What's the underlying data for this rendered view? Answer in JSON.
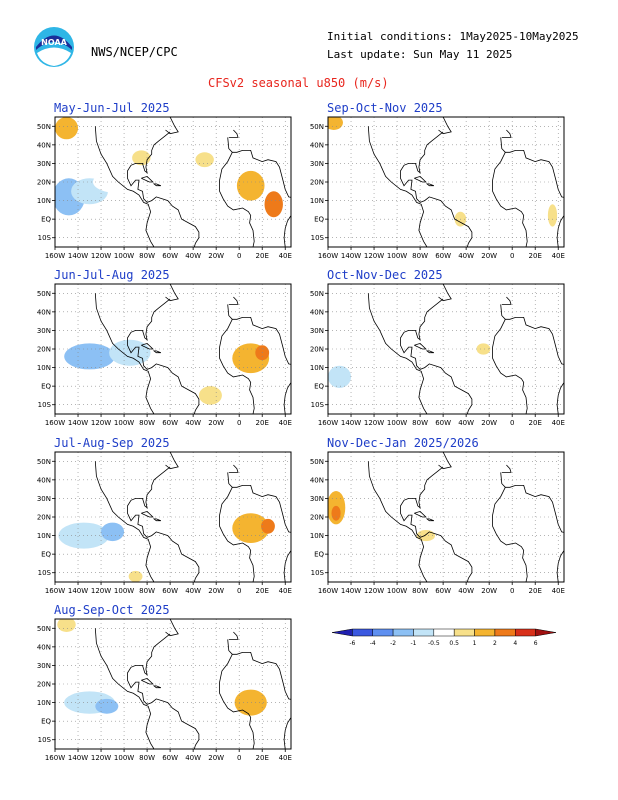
{
  "header": {
    "org": "NWS/NCEP/CPC",
    "logo_text": "NOAA",
    "initial_conditions": "Initial conditions: 1May2025-10May2025",
    "last_update": "Last update: Sun May 11 2025",
    "title": "CFSv2 seasonal u850 (m/s)"
  },
  "colors": {
    "title": "#e8261e",
    "panel_title": "#1f3ec8",
    "ocean": "#ffffff",
    "coast": "#000000"
  },
  "chart_data": {
    "type": "heatmap",
    "x_ticks": [
      "160W",
      "140W",
      "120W",
      "100W",
      "80W",
      "60W",
      "40W",
      "20W",
      "0",
      "20E",
      "40E"
    ],
    "y_ticks": [
      "50N",
      "40N",
      "30N",
      "20N",
      "10N",
      "EQ",
      "10S"
    ],
    "xlim": [
      -160,
      45
    ],
    "ylim": [
      -15,
      55
    ],
    "colorbar": {
      "levels": [
        "-6",
        "-4",
        "-2",
        "-1",
        "-0.5",
        "0.5",
        "1",
        "2",
        "4",
        "6"
      ],
      "colors": [
        "#2020b0",
        "#3a58e0",
        "#5e8ff0",
        "#8cc0f4",
        "#c2e4f7",
        "#ffffff",
        "#f7e08a",
        "#f4b430",
        "#ee7a1a",
        "#d8301a",
        "#a01010"
      ]
    },
    "panels": [
      {
        "title": "May-Jun-Jul 2025",
        "anomalies": [
          {
            "lon": -148,
            "lat": 12,
            "rlon": 14,
            "rlat": 10,
            "value": -2
          },
          {
            "lon": -130,
            "lat": 15,
            "rlon": 16,
            "rlat": 7,
            "value": -1
          },
          {
            "lon": -105,
            "lat": 20,
            "rlon": 22,
            "rlat": 6,
            "value": -0.5
          },
          {
            "lon": -150,
            "lat": 49,
            "rlon": 10,
            "rlat": 6,
            "value": 1
          },
          {
            "lon": -85,
            "lat": 33,
            "rlon": 8,
            "rlat": 4,
            "value": 0.5
          },
          {
            "lon": -30,
            "lat": 32,
            "rlon": 8,
            "rlat": 4,
            "value": 0.5
          },
          {
            "lon": 10,
            "lat": 18,
            "rlon": 12,
            "rlat": 8,
            "value": 1
          },
          {
            "lon": 30,
            "lat": 8,
            "rlon": 8,
            "rlat": 7,
            "value": 2
          },
          {
            "lon": -15,
            "lat": 52,
            "rlon": 18,
            "rlat": 4,
            "value": -0.5
          }
        ]
      },
      {
        "title": "Sep-Oct-Nov 2025",
        "anomalies": [
          {
            "lon": -140,
            "lat": 8,
            "rlon": 20,
            "rlat": 4,
            "value": -0.5
          },
          {
            "lon": -155,
            "lat": 52,
            "rlon": 8,
            "rlat": 4,
            "value": 1
          },
          {
            "lon": -45,
            "lat": 0,
            "rlon": 5,
            "rlat": 4,
            "value": 0.5
          },
          {
            "lon": 35,
            "lat": 2,
            "rlon": 4,
            "rlat": 6,
            "value": 0.5
          }
        ]
      },
      {
        "title": "Jun-Jul-Aug 2025",
        "anomalies": [
          {
            "lon": -130,
            "lat": 16,
            "rlon": 22,
            "rlat": 7,
            "value": -2
          },
          {
            "lon": -95,
            "lat": 18,
            "rlon": 18,
            "rlat": 7,
            "value": -1
          },
          {
            "lon": -70,
            "lat": 12,
            "rlon": 10,
            "rlat": 5,
            "value": -0.5
          },
          {
            "lon": 10,
            "lat": 15,
            "rlon": 16,
            "rlat": 8,
            "value": 1
          },
          {
            "lon": 20,
            "lat": 18,
            "rlon": 6,
            "rlat": 4,
            "value": 2
          },
          {
            "lon": -25,
            "lat": -5,
            "rlon": 10,
            "rlat": 5,
            "value": 0.5
          },
          {
            "lon": -10,
            "lat": 48,
            "rlon": 14,
            "rlat": 4,
            "value": -0.5
          }
        ]
      },
      {
        "title": "Oct-Nov-Dec 2025",
        "anomalies": [
          {
            "lon": -150,
            "lat": 5,
            "rlon": 10,
            "rlat": 6,
            "value": -1
          },
          {
            "lon": -25,
            "lat": 20,
            "rlon": 6,
            "rlat": 3,
            "value": 0.5
          },
          {
            "lon": -30,
            "lat": 5,
            "rlon": 5,
            "rlat": 4,
            "value": -0.5
          }
        ]
      },
      {
        "title": "Jul-Aug-Sep 2025",
        "anomalies": [
          {
            "lon": -135,
            "lat": 10,
            "rlon": 22,
            "rlat": 7,
            "value": -1
          },
          {
            "lon": -110,
            "lat": 12,
            "rlon": 10,
            "rlat": 5,
            "value": -2
          },
          {
            "lon": 10,
            "lat": 14,
            "rlon": 16,
            "rlat": 8,
            "value": 1
          },
          {
            "lon": 25,
            "lat": 15,
            "rlon": 6,
            "rlat": 4,
            "value": 2
          },
          {
            "lon": -90,
            "lat": -12,
            "rlon": 6,
            "rlat": 3,
            "value": 0.5
          }
        ]
      },
      {
        "title": "Nov-Dec-Jan 2025/2026",
        "anomalies": [
          {
            "lon": -153,
            "lat": 25,
            "rlon": 8,
            "rlat": 9,
            "value": 1
          },
          {
            "lon": -153,
            "lat": 22,
            "rlon": 4,
            "rlat": 4,
            "value": 2
          },
          {
            "lon": -150,
            "lat": 0,
            "rlon": 6,
            "rlat": 8,
            "value": -0.5
          },
          {
            "lon": -75,
            "lat": 10,
            "rlon": 8,
            "rlat": 3,
            "value": 0.5
          },
          {
            "lon": -55,
            "lat": 8,
            "rlon": 6,
            "rlat": 4,
            "value": -0.5
          }
        ]
      },
      {
        "title": "Aug-Sep-Oct 2025",
        "anomalies": [
          {
            "lon": -130,
            "lat": 10,
            "rlon": 22,
            "rlat": 6,
            "value": -1
          },
          {
            "lon": -115,
            "lat": 8,
            "rlon": 10,
            "rlat": 4,
            "value": -2
          },
          {
            "lon": 10,
            "lat": 10,
            "rlon": 14,
            "rlat": 7,
            "value": 1
          },
          {
            "lon": -150,
            "lat": 52,
            "rlon": 8,
            "rlat": 4,
            "value": 0.5
          }
        ]
      }
    ]
  }
}
